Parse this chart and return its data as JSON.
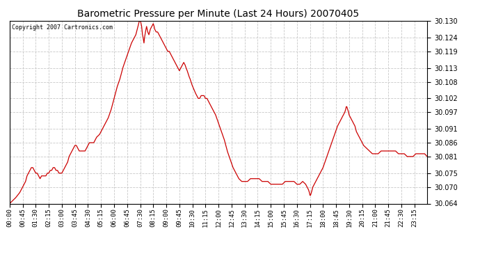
{
  "title": "Barometric Pressure per Minute (Last 24 Hours) 20070405",
  "copyright": "Copyright 2007 Cartronics.com",
  "line_color": "#cc0000",
  "background_color": "#ffffff",
  "grid_color": "#c8c8c8",
  "ylim": [
    30.064,
    30.13
  ],
  "yticks": [
    30.064,
    30.07,
    30.075,
    30.081,
    30.086,
    30.091,
    30.097,
    30.102,
    30.108,
    30.113,
    30.119,
    30.124,
    30.13
  ],
  "xtick_labels": [
    "00:00",
    "00:45",
    "01:30",
    "02:15",
    "03:00",
    "03:45",
    "04:30",
    "05:15",
    "06:00",
    "06:45",
    "07:30",
    "08:15",
    "09:00",
    "09:45",
    "10:30",
    "11:15",
    "12:00",
    "12:45",
    "13:30",
    "14:15",
    "15:00",
    "15:45",
    "16:30",
    "17:15",
    "18:00",
    "18:45",
    "19:30",
    "20:15",
    "21:00",
    "21:45",
    "22:30",
    "23:15"
  ],
  "keypoints": [
    [
      0,
      30.064
    ],
    [
      10,
      30.065
    ],
    [
      20,
      30.066
    ],
    [
      35,
      30.068
    ],
    [
      45,
      30.07
    ],
    [
      55,
      30.072
    ],
    [
      60,
      30.074
    ],
    [
      65,
      30.075
    ],
    [
      70,
      30.076
    ],
    [
      75,
      30.077
    ],
    [
      80,
      30.077
    ],
    [
      85,
      30.076
    ],
    [
      90,
      30.075
    ],
    [
      95,
      30.075
    ],
    [
      100,
      30.074
    ],
    [
      105,
      30.073
    ],
    [
      110,
      30.074
    ],
    [
      115,
      30.074
    ],
    [
      120,
      30.074
    ],
    [
      125,
      30.074
    ],
    [
      130,
      30.075
    ],
    [
      135,
      30.075
    ],
    [
      140,
      30.076
    ],
    [
      145,
      30.076
    ],
    [
      150,
      30.077
    ],
    [
      155,
      30.077
    ],
    [
      160,
      30.076
    ],
    [
      165,
      30.076
    ],
    [
      170,
      30.075
    ],
    [
      175,
      30.075
    ],
    [
      180,
      30.075
    ],
    [
      185,
      30.076
    ],
    [
      190,
      30.077
    ],
    [
      195,
      30.078
    ],
    [
      200,
      30.079
    ],
    [
      205,
      30.081
    ],
    [
      210,
      30.082
    ],
    [
      215,
      30.083
    ],
    [
      220,
      30.084
    ],
    [
      225,
      30.085
    ],
    [
      230,
      30.085
    ],
    [
      235,
      30.084
    ],
    [
      240,
      30.083
    ],
    [
      245,
      30.083
    ],
    [
      250,
      30.083
    ],
    [
      255,
      30.083
    ],
    [
      260,
      30.083
    ],
    [
      265,
      30.084
    ],
    [
      270,
      30.085
    ],
    [
      275,
      30.086
    ],
    [
      280,
      30.086
    ],
    [
      285,
      30.086
    ],
    [
      290,
      30.086
    ],
    [
      295,
      30.087
    ],
    [
      300,
      30.088
    ],
    [
      310,
      30.089
    ],
    [
      320,
      30.091
    ],
    [
      330,
      30.093
    ],
    [
      340,
      30.095
    ],
    [
      350,
      30.098
    ],
    [
      360,
      30.102
    ],
    [
      370,
      30.106
    ],
    [
      380,
      30.109
    ],
    [
      390,
      30.113
    ],
    [
      400,
      30.116
    ],
    [
      410,
      30.119
    ],
    [
      420,
      30.122
    ],
    [
      430,
      30.124
    ],
    [
      435,
      30.125
    ],
    [
      440,
      30.127
    ],
    [
      445,
      30.129
    ],
    [
      447,
      30.13
    ],
    [
      449,
      30.131
    ],
    [
      451,
      30.13
    ],
    [
      455,
      30.128
    ],
    [
      458,
      30.125
    ],
    [
      460,
      30.124
    ],
    [
      463,
      30.122
    ],
    [
      465,
      30.124
    ],
    [
      468,
      30.126
    ],
    [
      470,
      30.127
    ],
    [
      472,
      30.128
    ],
    [
      474,
      30.127
    ],
    [
      476,
      30.126
    ],
    [
      480,
      30.125
    ],
    [
      485,
      30.127
    ],
    [
      490,
      30.128
    ],
    [
      495,
      30.129
    ],
    [
      498,
      30.128
    ],
    [
      500,
      30.127
    ],
    [
      505,
      30.126
    ],
    [
      510,
      30.126
    ],
    [
      515,
      30.125
    ],
    [
      520,
      30.124
    ],
    [
      525,
      30.123
    ],
    [
      530,
      30.122
    ],
    [
      535,
      30.121
    ],
    [
      540,
      30.12
    ],
    [
      545,
      30.119
    ],
    [
      550,
      30.119
    ],
    [
      555,
      30.118
    ],
    [
      560,
      30.117
    ],
    [
      565,
      30.116
    ],
    [
      570,
      30.115
    ],
    [
      575,
      30.114
    ],
    [
      580,
      30.113
    ],
    [
      585,
      30.112
    ],
    [
      590,
      30.113
    ],
    [
      595,
      30.114
    ],
    [
      600,
      30.115
    ],
    [
      605,
      30.114
    ],
    [
      608,
      30.113
    ],
    [
      612,
      30.112
    ],
    [
      615,
      30.111
    ],
    [
      618,
      30.11
    ],
    [
      622,
      30.109
    ],
    [
      625,
      30.108
    ],
    [
      628,
      30.107
    ],
    [
      632,
      30.106
    ],
    [
      636,
      30.105
    ],
    [
      640,
      30.104
    ],
    [
      645,
      30.103
    ],
    [
      650,
      30.102
    ],
    [
      655,
      30.102
    ],
    [
      660,
      30.103
    ],
    [
      665,
      30.103
    ],
    [
      670,
      30.103
    ],
    [
      675,
      30.102
    ],
    [
      680,
      30.102
    ],
    [
      685,
      30.101
    ],
    [
      690,
      30.1
    ],
    [
      695,
      30.099
    ],
    [
      700,
      30.098
    ],
    [
      710,
      30.096
    ],
    [
      720,
      30.093
    ],
    [
      730,
      30.09
    ],
    [
      740,
      30.087
    ],
    [
      750,
      30.083
    ],
    [
      760,
      30.08
    ],
    [
      770,
      30.077
    ],
    [
      780,
      30.075
    ],
    [
      790,
      30.073
    ],
    [
      800,
      30.072
    ],
    [
      810,
      30.072
    ],
    [
      820,
      30.072
    ],
    [
      830,
      30.073
    ],
    [
      840,
      30.073
    ],
    [
      850,
      30.073
    ],
    [
      860,
      30.073
    ],
    [
      870,
      30.072
    ],
    [
      880,
      30.072
    ],
    [
      890,
      30.072
    ],
    [
      900,
      30.071
    ],
    [
      910,
      30.071
    ],
    [
      920,
      30.071
    ],
    [
      930,
      30.071
    ],
    [
      940,
      30.071
    ],
    [
      950,
      30.072
    ],
    [
      960,
      30.072
    ],
    [
      970,
      30.072
    ],
    [
      980,
      30.072
    ],
    [
      990,
      30.071
    ],
    [
      1000,
      30.071
    ],
    [
      1010,
      30.072
    ],
    [
      1020,
      30.071
    ],
    [
      1025,
      30.07
    ],
    [
      1030,
      30.069
    ],
    [
      1033,
      30.068
    ],
    [
      1035,
      30.067
    ],
    [
      1037,
      30.067
    ],
    [
      1040,
      30.068
    ],
    [
      1045,
      30.07
    ],
    [
      1050,
      30.071
    ],
    [
      1055,
      30.072
    ],
    [
      1060,
      30.073
    ],
    [
      1065,
      30.074
    ],
    [
      1070,
      30.075
    ],
    [
      1080,
      30.077
    ],
    [
      1090,
      30.08
    ],
    [
      1100,
      30.083
    ],
    [
      1110,
      30.086
    ],
    [
      1120,
      30.089
    ],
    [
      1130,
      30.092
    ],
    [
      1140,
      30.094
    ],
    [
      1150,
      30.096
    ],
    [
      1155,
      30.097
    ],
    [
      1158,
      30.098
    ],
    [
      1160,
      30.099
    ],
    [
      1162,
      30.099
    ],
    [
      1165,
      30.098
    ],
    [
      1168,
      30.097
    ],
    [
      1170,
      30.096
    ],
    [
      1175,
      30.095
    ],
    [
      1180,
      30.094
    ],
    [
      1185,
      30.093
    ],
    [
      1190,
      30.092
    ],
    [
      1195,
      30.09
    ],
    [
      1200,
      30.089
    ],
    [
      1210,
      30.087
    ],
    [
      1220,
      30.085
    ],
    [
      1230,
      30.084
    ],
    [
      1240,
      30.083
    ],
    [
      1250,
      30.082
    ],
    [
      1260,
      30.082
    ],
    [
      1270,
      30.082
    ],
    [
      1280,
      30.083
    ],
    [
      1290,
      30.083
    ],
    [
      1300,
      30.083
    ],
    [
      1310,
      30.083
    ],
    [
      1320,
      30.083
    ],
    [
      1330,
      30.083
    ],
    [
      1340,
      30.082
    ],
    [
      1350,
      30.082
    ],
    [
      1360,
      30.082
    ],
    [
      1370,
      30.081
    ],
    [
      1380,
      30.081
    ],
    [
      1390,
      30.081
    ],
    [
      1400,
      30.082
    ],
    [
      1410,
      30.082
    ],
    [
      1420,
      30.082
    ],
    [
      1430,
      30.082
    ],
    [
      1439,
      30.081
    ]
  ]
}
